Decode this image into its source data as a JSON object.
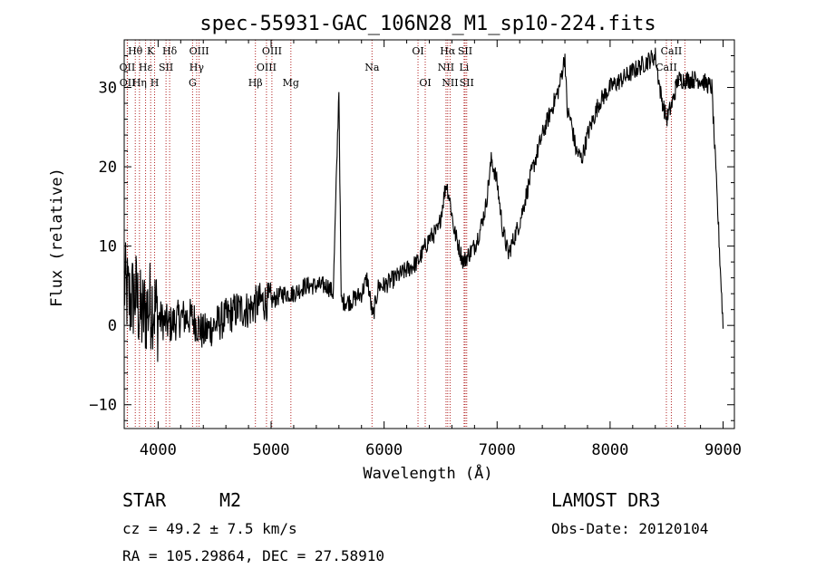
{
  "chart_data": {
    "type": "line",
    "title": "spec-55931-GAC_106N28_M1_sp10-224.fits",
    "xlabel": "Wavelength (Å)",
    "ylabel": "Flux (relative)",
    "xlim": [
      3700,
      9100
    ],
    "ylim": [
      -13,
      36
    ],
    "xticks": [
      4000,
      5000,
      6000,
      7000,
      8000,
      9000
    ],
    "xtick_labels": [
      "4000",
      "5000",
      "6000",
      "7000",
      "8000",
      "9000"
    ],
    "yticks": [
      -10,
      0,
      10,
      20,
      30
    ],
    "ytick_labels": [
      "−10",
      "0",
      "10",
      "20",
      "30"
    ],
    "grid": false,
    "series": [
      {
        "name": "spectrum",
        "color": "#000000",
        "x": [
          3700,
          3750,
          3800,
          3850,
          3900,
          3950,
          4000,
          4100,
          4200,
          4300,
          4400,
          4500,
          4600,
          4700,
          4800,
          4900,
          5000,
          5100,
          5200,
          5300,
          5400,
          5500,
          5550,
          5600,
          5620,
          5700,
          5800,
          5850,
          5900,
          5950,
          6000,
          6100,
          6200,
          6300,
          6400,
          6480,
          6550,
          6580,
          6620,
          6700,
          6750,
          6800,
          6850,
          6900,
          6950,
          7000,
          7050,
          7100,
          7150,
          7200,
          7300,
          7400,
          7500,
          7550,
          7600,
          7620,
          7650,
          7700,
          7750,
          7800,
          7900,
          8000,
          8100,
          8200,
          8300,
          8400,
          8450,
          8500,
          8550,
          8600,
          8700,
          8800,
          8900,
          9000
        ],
        "values": [
          5,
          3,
          4,
          1,
          2,
          3,
          1,
          0,
          1,
          1,
          -1,
          0,
          1,
          2,
          2,
          3,
          3,
          4,
          4,
          5,
          5,
          5,
          4,
          30,
          3,
          3,
          4,
          6,
          1,
          5,
          5,
          6,
          7,
          8,
          11,
          12,
          18,
          16,
          12,
          8,
          9,
          10,
          12,
          15,
          21,
          18,
          12,
          9,
          11,
          13,
          19,
          24,
          28,
          30,
          34,
          27,
          26,
          22,
          21,
          24,
          28,
          30,
          31,
          32,
          33,
          34,
          29,
          26,
          28,
          31,
          31,
          31,
          30,
          0
        ]
      }
    ],
    "spectral_lines": [
      {
        "label": "Hθ",
        "x": 3798,
        "row": 0
      },
      {
        "label": "OII",
        "x": 3727,
        "row": 1
      },
      {
        "label": "OII",
        "x": 3729,
        "row": 2
      },
      {
        "label": "K",
        "x": 3934,
        "row": 0
      },
      {
        "label": "Hε",
        "x": 3889,
        "row": 1
      },
      {
        "label": "Hη",
        "x": 3835,
        "row": 2
      },
      {
        "label": "Hδ",
        "x": 4102,
        "row": 0
      },
      {
        "label": "SII",
        "x": 4070,
        "row": 1
      },
      {
        "label": "H",
        "x": 3969,
        "row": 2
      },
      {
        "label": "OIII",
        "x": 4363,
        "row": 0
      },
      {
        "label": "Hγ",
        "x": 4341,
        "row": 1
      },
      {
        "label": "G",
        "x": 4305,
        "row": 2
      },
      {
        "label": "OIII",
        "x": 5007,
        "row": 0
      },
      {
        "label": "OIII",
        "x": 4959,
        "row": 1
      },
      {
        "label": "Hβ",
        "x": 4861,
        "row": 2
      },
      {
        "label": "Mg",
        "x": 5175,
        "row": 2
      },
      {
        "label": "Na",
        "x": 5893,
        "row": 1
      },
      {
        "label": "OI",
        "x": 6300,
        "row": 0
      },
      {
        "label": "OI",
        "x": 6364,
        "row": 2
      },
      {
        "label": "Hα",
        "x": 6563,
        "row": 0
      },
      {
        "label": "NII",
        "x": 6548,
        "row": 1
      },
      {
        "label": "NII",
        "x": 6584,
        "row": 2
      },
      {
        "label": "SII",
        "x": 6717,
        "row": 0
      },
      {
        "label": "Li",
        "x": 6708,
        "row": 1
      },
      {
        "label": "SII",
        "x": 6731,
        "row": 2
      },
      {
        "label": "CaII",
        "x": 8542,
        "row": 0
      },
      {
        "label": "CaII",
        "x": 8498,
        "row": 1
      },
      {
        "label": "CaII",
        "x": 8662,
        "row": 2
      }
    ]
  },
  "info": {
    "class_label": "STAR",
    "subclass": "M2",
    "survey": "LAMOST DR3",
    "redshift_text": "cz = 49.2 ± 7.5 km/s",
    "obs_date_text": "Obs-Date: 20120104",
    "coords_text": "RA = 105.29864, DEC =  27.58910"
  },
  "colors": {
    "line_marker": "#b22222",
    "spectrum": "#000000",
    "axes": "#000000"
  }
}
